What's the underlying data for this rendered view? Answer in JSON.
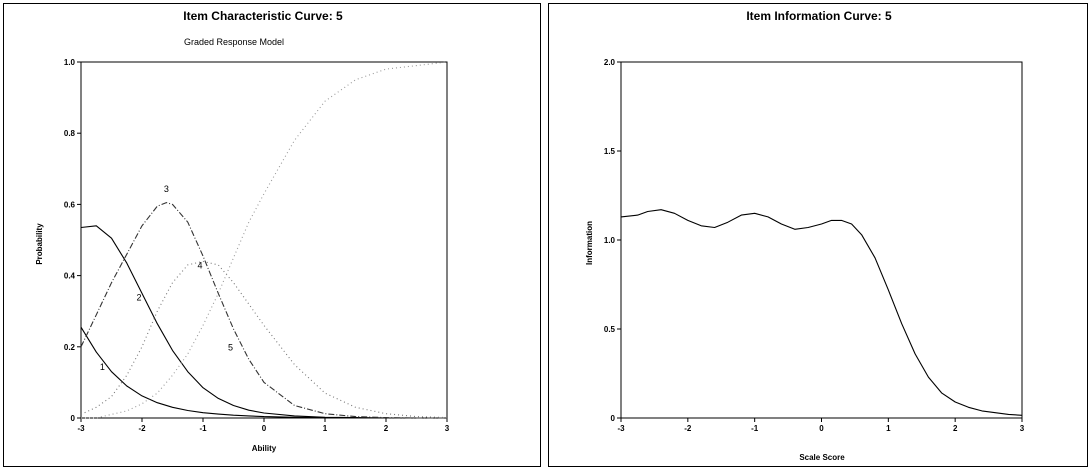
{
  "chart_data": [
    {
      "type": "line",
      "title": "Item Characteristic Curve: 5",
      "subtitle": "Graded Response Model",
      "xlabel": "Ability",
      "ylabel": "Probability",
      "xlim": [
        -3,
        3
      ],
      "ylim": [
        0,
        1
      ],
      "xticks": [
        "-3",
        "-2",
        "-1",
        "0",
        "1",
        "2",
        "3"
      ],
      "yticks": [
        "0",
        "0.2",
        "0.4",
        "0.6",
        "0.8",
        "1.0"
      ],
      "grid": false,
      "series": [
        {
          "name": "1",
          "style": "solid",
          "color": "#000000",
          "x": [
            -3.0,
            -2.75,
            -2.5,
            -2.25,
            -2.0,
            -1.75,
            -1.5,
            -1.25,
            -1.0,
            -0.75,
            -0.5,
            -0.25,
            0.0,
            0.5,
            1.0,
            1.5,
            2.0,
            2.5,
            3.0
          ],
          "y": [
            0.255,
            0.185,
            0.13,
            0.09,
            0.062,
            0.043,
            0.03,
            0.021,
            0.015,
            0.011,
            0.008,
            0.006,
            0.004,
            0.002,
            0.001,
            0.0,
            0.0,
            0.0,
            0.0
          ]
        },
        {
          "name": "2",
          "style": "solid",
          "color": "#000000",
          "x": [
            -3.0,
            -2.75,
            -2.5,
            -2.25,
            -2.0,
            -1.75,
            -1.5,
            -1.25,
            -1.0,
            -0.75,
            -0.5,
            -0.25,
            0.0,
            0.5,
            1.0,
            1.5,
            2.0,
            2.5,
            3.0
          ],
          "y": [
            0.535,
            0.54,
            0.505,
            0.435,
            0.35,
            0.265,
            0.19,
            0.13,
            0.085,
            0.055,
            0.035,
            0.022,
            0.014,
            0.006,
            0.002,
            0.001,
            0.0,
            0.0,
            0.0
          ]
        },
        {
          "name": "3",
          "style": "dashed",
          "color": "#333333",
          "x": [
            -3.0,
            -2.75,
            -2.5,
            -2.25,
            -2.0,
            -1.75,
            -1.6,
            -1.5,
            -1.25,
            -1.0,
            -0.75,
            -0.5,
            -0.25,
            0.0,
            0.5,
            1.0,
            1.5,
            2.0,
            2.5,
            3.0
          ],
          "y": [
            0.2,
            0.29,
            0.38,
            0.46,
            0.54,
            0.595,
            0.605,
            0.6,
            0.55,
            0.455,
            0.35,
            0.25,
            0.165,
            0.1,
            0.035,
            0.012,
            0.004,
            0.001,
            0.0,
            0.0
          ]
        },
        {
          "name": "4",
          "style": "dotted",
          "color": "#777777",
          "x": [
            -3.0,
            -2.75,
            -2.5,
            -2.25,
            -2.0,
            -1.75,
            -1.5,
            -1.25,
            -1.0,
            -0.75,
            -0.5,
            -0.25,
            0.0,
            0.5,
            1.0,
            1.5,
            2.0,
            2.5,
            3.0
          ],
          "y": [
            0.01,
            0.03,
            0.06,
            0.12,
            0.2,
            0.3,
            0.38,
            0.43,
            0.44,
            0.43,
            0.38,
            0.32,
            0.26,
            0.15,
            0.07,
            0.03,
            0.012,
            0.004,
            0.001
          ]
        },
        {
          "name": "5",
          "style": "dotted",
          "color": "#999999",
          "x": [
            -3.0,
            -2.75,
            -2.5,
            -2.25,
            -2.0,
            -1.75,
            -1.5,
            -1.25,
            -1.0,
            -0.75,
            -0.5,
            -0.25,
            0.0,
            0.5,
            1.0,
            1.5,
            2.0,
            2.5,
            3.0
          ],
          "y": [
            0.0,
            0.0,
            0.01,
            0.02,
            0.04,
            0.07,
            0.12,
            0.18,
            0.26,
            0.35,
            0.45,
            0.55,
            0.63,
            0.78,
            0.89,
            0.95,
            0.98,
            0.99,
            1.0
          ]
        }
      ],
      "labels": [
        {
          "text": "1",
          "x": -2.65,
          "y": 0.135
        },
        {
          "text": "2",
          "x": -2.05,
          "y": 0.33
        },
        {
          "text": "3",
          "x": -1.6,
          "y": 0.635
        },
        {
          "text": "4",
          "x": -1.05,
          "y": 0.42
        },
        {
          "text": "5",
          "x": -0.55,
          "y": 0.19
        }
      ]
    },
    {
      "type": "line",
      "title": "Item Information Curve: 5",
      "xlabel": "Scale Score",
      "ylabel": "Information",
      "xlim": [
        -3,
        3
      ],
      "ylim": [
        0,
        2
      ],
      "xticks": [
        "-3",
        "-2",
        "-1",
        "0",
        "1",
        "2",
        "3"
      ],
      "yticks": [
        "0",
        "0.5",
        "1.0",
        "1.5",
        "2.0"
      ],
      "grid": false,
      "series": [
        {
          "style": "solid",
          "color": "#000000",
          "x": [
            -3.0,
            -2.75,
            -2.6,
            -2.4,
            -2.2,
            -2.0,
            -1.8,
            -1.6,
            -1.4,
            -1.2,
            -1.0,
            -0.8,
            -0.6,
            -0.4,
            -0.2,
            0.0,
            0.15,
            0.3,
            0.45,
            0.6,
            0.8,
            1.0,
            1.2,
            1.4,
            1.6,
            1.8,
            2.0,
            2.2,
            2.4,
            2.6,
            2.8,
            3.0
          ],
          "y": [
            1.13,
            1.14,
            1.16,
            1.17,
            1.15,
            1.11,
            1.08,
            1.07,
            1.1,
            1.14,
            1.15,
            1.13,
            1.09,
            1.06,
            1.07,
            1.09,
            1.11,
            1.11,
            1.09,
            1.03,
            0.9,
            0.72,
            0.53,
            0.36,
            0.23,
            0.14,
            0.09,
            0.06,
            0.04,
            0.03,
            0.02,
            0.015
          ]
        }
      ]
    }
  ]
}
